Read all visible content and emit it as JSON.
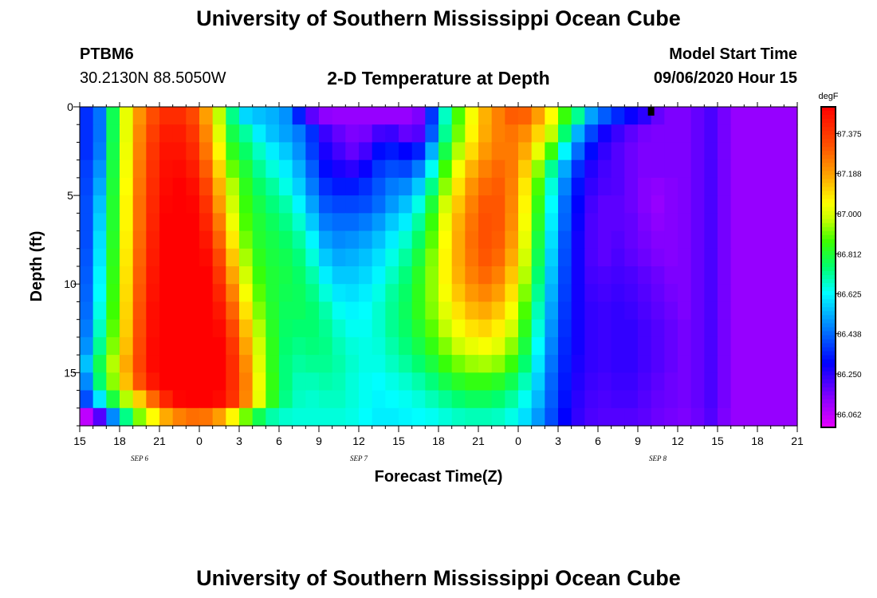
{
  "page": {
    "title_top": "University of Southern Mississippi Ocean Cube",
    "title_bottom": "University of Southern Mississippi Ocean Cube",
    "station_id": "PTBM6",
    "station_location": "30.2130N 88.5050W",
    "model_start_label": "Model Start Time",
    "model_start_value": "09/06/2020 Hour 15"
  },
  "chart_data": {
    "type": "heatmap",
    "title": "2-D Temperature at Depth",
    "xlabel": "Forecast Time(Z)",
    "ylabel": "Depth (ft)",
    "units": "degF",
    "x_range_hours": [
      0,
      54
    ],
    "y_range_ft": [
      0,
      18
    ],
    "y_ticks": [
      "0",
      "5",
      "10",
      "15"
    ],
    "x_ticks": [
      "15",
      "18",
      "21",
      "0",
      "3",
      "6",
      "9",
      "12",
      "15",
      "18",
      "21",
      "0",
      "3",
      "6",
      "9",
      "12",
      "15",
      "18",
      "21"
    ],
    "date_labels": [
      {
        "text": "SEP 6",
        "at_tick": 1.5
      },
      {
        "text": "SEP 7",
        "at_tick": 7
      },
      {
        "text": "SEP 8",
        "at_tick": 14.5
      }
    ],
    "colorbar_range": [
      86.0,
      87.5
    ],
    "colorbar_ticks": [
      "87.375",
      "87.188",
      "87.000",
      "86.812",
      "86.625",
      "86.438",
      "86.250",
      "86.062"
    ],
    "marker_time_hours": 43.0,
    "nx": 54,
    "ny": 18,
    "grid_degF": [
      [
        86.36,
        86.45,
        86.78,
        87.02,
        87.21,
        87.33,
        87.4,
        87.4,
        87.34,
        87.19,
        86.97,
        86.73,
        86.58,
        86.55,
        86.53,
        86.49,
        86.34,
        86.19,
        86.13,
        86.12,
        86.12,
        86.12,
        86.12,
        86.12,
        86.12,
        86.15,
        86.37,
        86.68,
        86.88,
        87.04,
        87.16,
        87.24,
        87.3,
        87.29,
        87.19,
        87.05,
        86.86,
        86.72,
        86.51,
        86.42,
        86.35,
        86.29,
        86.25,
        86.18,
        86.15,
        86.15,
        86.18,
        86.21,
        86.16,
        86.12,
        86.12,
        86.12,
        86.12,
        86.12
      ],
      [
        86.36,
        86.45,
        86.78,
        87.02,
        87.23,
        87.36,
        87.44,
        87.44,
        87.38,
        87.23,
        87.01,
        86.79,
        86.71,
        86.61,
        86.55,
        86.51,
        86.46,
        86.36,
        86.23,
        86.18,
        86.15,
        86.16,
        86.22,
        86.23,
        86.18,
        86.2,
        86.42,
        86.72,
        86.91,
        87.06,
        87.17,
        87.24,
        87.26,
        87.22,
        87.11,
        86.97,
        86.75,
        86.53,
        86.39,
        86.28,
        86.23,
        86.19,
        86.16,
        86.15,
        86.15,
        86.15,
        86.18,
        86.21,
        86.16,
        86.12,
        86.12,
        86.12,
        86.12,
        86.12
      ],
      [
        86.36,
        86.46,
        86.79,
        87.03,
        87.24,
        87.38,
        87.46,
        87.46,
        87.41,
        87.26,
        87.06,
        86.84,
        86.76,
        86.68,
        86.61,
        86.56,
        86.49,
        86.38,
        86.27,
        86.22,
        86.18,
        86.22,
        86.31,
        86.33,
        86.3,
        86.34,
        86.53,
        86.79,
        86.96,
        87.1,
        87.2,
        87.25,
        87.25,
        87.17,
        87.02,
        86.86,
        86.62,
        86.44,
        86.31,
        86.24,
        86.2,
        86.17,
        86.15,
        86.15,
        86.15,
        86.15,
        86.18,
        86.21,
        86.16,
        86.12,
        86.12,
        86.12,
        86.12,
        86.12
      ],
      [
        86.38,
        86.49,
        86.8,
        87.04,
        87.25,
        87.39,
        87.47,
        87.48,
        87.44,
        87.3,
        87.11,
        86.9,
        86.81,
        86.72,
        86.66,
        86.61,
        86.53,
        86.42,
        86.31,
        86.27,
        86.25,
        86.29,
        86.37,
        86.4,
        86.39,
        86.46,
        86.64,
        86.87,
        87.04,
        87.16,
        87.24,
        87.28,
        87.25,
        87.12,
        86.93,
        86.72,
        86.52,
        86.36,
        86.26,
        86.22,
        86.2,
        86.17,
        86.15,
        86.15,
        86.15,
        86.15,
        86.18,
        86.21,
        86.16,
        86.12,
        86.12,
        86.12,
        86.12,
        86.12
      ],
      [
        86.39,
        86.52,
        86.81,
        87.05,
        87.26,
        87.4,
        87.48,
        87.5,
        87.47,
        87.35,
        87.16,
        86.96,
        86.84,
        86.76,
        86.71,
        86.65,
        86.57,
        86.46,
        86.36,
        86.33,
        86.33,
        86.36,
        86.41,
        86.46,
        86.48,
        86.56,
        86.73,
        86.93,
        87.09,
        87.21,
        87.28,
        87.3,
        87.24,
        87.08,
        86.88,
        86.66,
        86.47,
        86.32,
        86.24,
        86.21,
        86.2,
        86.17,
        86.14,
        86.13,
        86.14,
        86.15,
        86.18,
        86.21,
        86.16,
        86.12,
        86.12,
        86.12,
        86.12,
        86.12
      ],
      [
        86.4,
        86.55,
        86.82,
        87.06,
        87.27,
        87.41,
        87.49,
        87.51,
        87.49,
        87.39,
        87.2,
        86.99,
        86.86,
        86.79,
        86.74,
        86.7,
        86.62,
        86.51,
        86.41,
        86.39,
        86.39,
        86.4,
        86.44,
        86.5,
        86.55,
        86.65,
        86.81,
        86.99,
        87.13,
        87.24,
        87.31,
        87.31,
        87.23,
        87.06,
        86.85,
        86.63,
        86.44,
        86.3,
        86.22,
        86.19,
        86.19,
        86.17,
        86.14,
        86.12,
        86.14,
        86.15,
        86.18,
        86.21,
        86.16,
        86.12,
        86.12,
        86.12,
        86.12,
        86.12
      ],
      [
        86.4,
        86.57,
        86.82,
        87.06,
        87.27,
        87.42,
        87.5,
        87.53,
        87.51,
        87.42,
        87.25,
        87.03,
        86.88,
        86.81,
        86.77,
        86.73,
        86.67,
        86.56,
        86.46,
        86.44,
        86.44,
        86.46,
        86.5,
        86.56,
        86.61,
        86.71,
        86.86,
        87.03,
        87.16,
        87.26,
        87.32,
        87.31,
        87.22,
        87.04,
        86.83,
        86.61,
        86.43,
        86.29,
        86.21,
        86.19,
        86.19,
        86.18,
        86.15,
        86.13,
        86.14,
        86.15,
        86.18,
        86.21,
        86.16,
        86.12,
        86.12,
        86.12,
        86.12,
        86.12
      ],
      [
        86.4,
        86.59,
        86.83,
        87.07,
        87.28,
        87.43,
        87.51,
        87.54,
        87.53,
        87.45,
        87.29,
        87.08,
        86.91,
        86.82,
        86.79,
        86.76,
        86.71,
        86.62,
        86.51,
        86.48,
        86.49,
        86.51,
        86.55,
        86.61,
        86.67,
        86.76,
        86.89,
        87.05,
        87.17,
        87.27,
        87.32,
        87.3,
        87.2,
        87.02,
        86.8,
        86.59,
        86.41,
        86.28,
        86.21,
        86.19,
        86.2,
        86.18,
        86.16,
        86.14,
        86.14,
        86.15,
        86.18,
        86.21,
        86.16,
        86.12,
        86.12,
        86.12,
        86.12,
        86.12
      ],
      [
        86.41,
        86.6,
        86.84,
        87.08,
        87.29,
        87.44,
        87.52,
        87.55,
        87.54,
        87.48,
        87.34,
        87.13,
        86.95,
        86.84,
        86.8,
        86.78,
        86.74,
        86.66,
        86.56,
        86.52,
        86.53,
        86.55,
        86.59,
        86.65,
        86.71,
        86.8,
        86.92,
        87.06,
        87.17,
        87.26,
        87.31,
        87.28,
        87.17,
        86.99,
        86.78,
        86.57,
        86.4,
        86.28,
        86.21,
        86.19,
        86.21,
        86.19,
        86.17,
        86.15,
        86.14,
        86.15,
        86.18,
        86.21,
        86.16,
        86.12,
        86.12,
        86.12,
        86.12,
        86.12
      ],
      [
        86.42,
        86.62,
        86.85,
        87.09,
        87.3,
        87.45,
        87.53,
        87.56,
        87.55,
        87.5,
        87.38,
        87.18,
        86.99,
        86.86,
        86.81,
        86.79,
        86.76,
        86.7,
        86.61,
        86.56,
        86.56,
        86.58,
        86.62,
        86.68,
        86.74,
        86.83,
        86.93,
        87.06,
        87.16,
        87.24,
        87.28,
        87.24,
        87.13,
        86.96,
        86.75,
        86.55,
        86.39,
        86.28,
        86.22,
        86.21,
        86.22,
        86.21,
        86.19,
        86.17,
        86.15,
        86.15,
        86.18,
        86.21,
        86.16,
        86.12,
        86.12,
        86.12,
        86.12,
        86.12
      ],
      [
        86.43,
        86.63,
        86.86,
        87.1,
        87.31,
        87.46,
        87.54,
        87.57,
        87.56,
        87.52,
        87.42,
        87.24,
        87.04,
        86.89,
        86.81,
        86.78,
        86.77,
        86.73,
        86.66,
        86.6,
        86.59,
        86.61,
        86.65,
        86.71,
        86.76,
        86.84,
        86.93,
        87.04,
        87.13,
        87.2,
        87.23,
        87.19,
        87.09,
        86.92,
        86.72,
        86.53,
        86.38,
        86.28,
        86.23,
        86.22,
        86.23,
        86.22,
        86.2,
        86.18,
        86.16,
        86.15,
        86.18,
        86.21,
        86.16,
        86.12,
        86.12,
        86.12,
        86.12,
        86.12
      ],
      [
        86.44,
        86.65,
        86.87,
        87.11,
        87.32,
        87.47,
        87.55,
        87.58,
        87.57,
        87.54,
        87.45,
        87.29,
        87.09,
        86.92,
        86.82,
        86.77,
        86.77,
        86.75,
        86.7,
        86.64,
        86.62,
        86.63,
        86.67,
        86.72,
        86.77,
        86.84,
        86.92,
        87.01,
        87.09,
        87.15,
        87.17,
        87.13,
        87.04,
        86.88,
        86.69,
        86.51,
        86.37,
        86.28,
        86.24,
        86.23,
        86.24,
        86.23,
        86.21,
        86.19,
        86.17,
        86.15,
        86.18,
        86.21,
        86.16,
        86.12,
        86.12,
        86.12,
        86.12,
        86.12
      ],
      [
        86.46,
        86.68,
        86.89,
        87.12,
        87.33,
        87.47,
        87.56,
        87.59,
        87.58,
        87.55,
        87.48,
        87.34,
        87.14,
        86.96,
        86.83,
        86.76,
        86.75,
        86.75,
        86.72,
        86.67,
        86.64,
        86.64,
        86.67,
        86.72,
        86.76,
        86.82,
        86.89,
        86.97,
        87.04,
        87.09,
        87.11,
        87.07,
        86.99,
        86.84,
        86.66,
        86.49,
        86.36,
        86.28,
        86.24,
        86.23,
        86.24,
        86.24,
        86.22,
        86.2,
        86.18,
        86.16,
        86.18,
        86.21,
        86.16,
        86.12,
        86.12,
        86.12,
        86.12,
        86.12
      ],
      [
        86.49,
        86.72,
        86.92,
        87.14,
        87.34,
        87.48,
        87.56,
        87.6,
        87.59,
        87.56,
        87.5,
        87.38,
        87.18,
        86.99,
        86.84,
        86.75,
        86.73,
        86.74,
        86.73,
        86.69,
        86.66,
        86.65,
        86.66,
        86.7,
        86.74,
        86.79,
        86.85,
        86.92,
        86.98,
        87.02,
        87.04,
        87.01,
        86.93,
        86.8,
        86.63,
        86.47,
        86.35,
        86.28,
        86.24,
        86.23,
        86.24,
        86.24,
        86.22,
        86.2,
        86.18,
        86.16,
        86.18,
        86.21,
        86.16,
        86.12,
        86.12,
        86.12,
        86.12,
        86.12
      ],
      [
        86.55,
        86.78,
        86.96,
        87.17,
        87.35,
        87.48,
        87.56,
        87.6,
        87.59,
        87.56,
        87.5,
        87.4,
        87.22,
        87.01,
        86.84,
        86.74,
        86.71,
        86.72,
        86.72,
        86.7,
        86.67,
        86.65,
        86.65,
        86.68,
        86.71,
        86.75,
        86.8,
        86.86,
        86.91,
        86.94,
        86.95,
        86.93,
        86.86,
        86.75,
        86.6,
        86.45,
        86.34,
        86.27,
        86.24,
        86.23,
        86.24,
        86.24,
        86.22,
        86.2,
        86.18,
        86.16,
        86.18,
        86.21,
        86.16,
        86.12,
        86.12,
        86.12,
        86.12,
        86.12
      ],
      [
        86.48,
        86.75,
        86.93,
        87.14,
        87.32,
        87.45,
        87.54,
        87.58,
        87.58,
        87.56,
        87.5,
        87.4,
        87.24,
        87.03,
        86.85,
        86.74,
        86.69,
        86.69,
        86.7,
        86.69,
        86.66,
        86.64,
        86.63,
        86.65,
        86.67,
        86.7,
        86.74,
        86.79,
        86.83,
        86.85,
        86.85,
        86.83,
        86.78,
        86.69,
        86.57,
        86.43,
        86.33,
        86.26,
        86.23,
        86.22,
        86.23,
        86.23,
        86.21,
        86.19,
        86.17,
        86.16,
        86.18,
        86.21,
        86.16,
        86.12,
        86.12,
        86.12,
        86.12,
        86.12
      ],
      [
        86.4,
        86.6,
        86.8,
        86.96,
        87.12,
        87.28,
        87.42,
        87.49,
        87.52,
        87.52,
        87.48,
        87.39,
        87.23,
        87.02,
        86.84,
        86.73,
        86.68,
        86.67,
        86.68,
        86.68,
        86.66,
        86.64,
        86.62,
        86.63,
        86.64,
        86.66,
        86.69,
        86.72,
        86.75,
        86.77,
        86.77,
        86.75,
        86.71,
        86.64,
        86.54,
        86.42,
        86.32,
        86.25,
        86.22,
        86.21,
        86.22,
        86.22,
        86.2,
        86.18,
        86.17,
        86.16,
        86.18,
        86.21,
        86.16,
        86.12,
        86.12,
        86.12,
        86.12,
        86.12
      ],
      [
        86.06,
        86.2,
        86.48,
        86.73,
        86.92,
        87.05,
        87.17,
        87.24,
        87.27,
        87.26,
        87.19,
        87.06,
        86.91,
        86.78,
        86.7,
        86.67,
        86.66,
        86.66,
        86.66,
        86.66,
        86.65,
        86.63,
        86.61,
        86.61,
        86.62,
        86.63,
        86.64,
        86.66,
        86.68,
        86.69,
        86.69,
        86.68,
        86.65,
        86.59,
        86.5,
        86.4,
        86.3,
        86.24,
        86.21,
        86.2,
        86.2,
        86.2,
        86.19,
        86.17,
        86.16,
        86.15,
        86.17,
        86.2,
        86.15,
        86.12,
        86.12,
        86.12,
        86.12,
        86.12
      ]
    ]
  }
}
